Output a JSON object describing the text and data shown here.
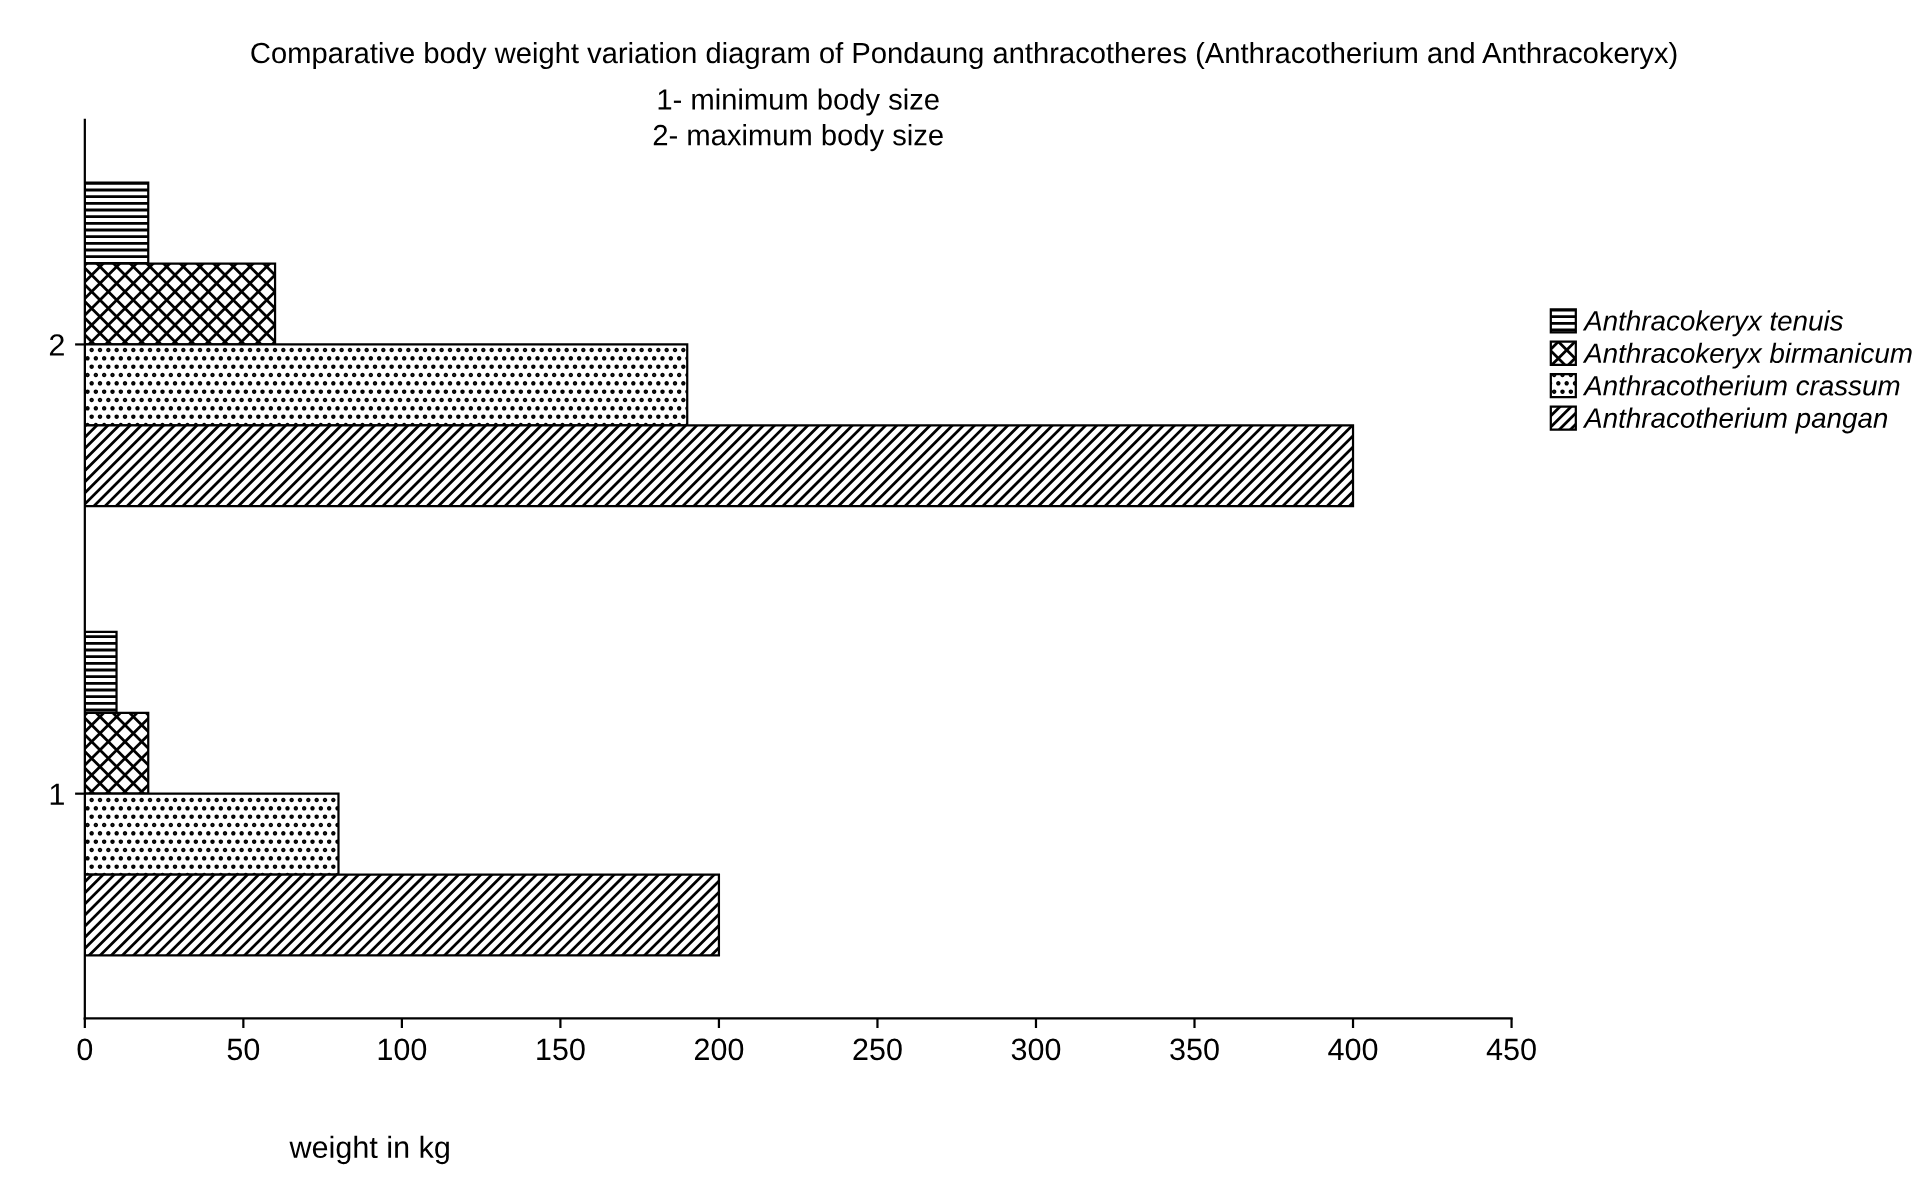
{
  "chart_data": {
    "type": "bar",
    "orientation": "horizontal",
    "title": "Comparative body weight variation diagram of Pondaung anthracotheres (Anthracotherium and Anthracokeryx)",
    "subtitle": "1- minimum body size\n2- maximum body size",
    "xlabel": "weight in kg",
    "categories": [
      "2",
      "1"
    ],
    "series": [
      {
        "name": "Anthracokeryx tenuis",
        "color": "#000000",
        "values": [
          20,
          10
        ]
      },
      {
        "name": "Anthracokeryx birmanicum",
        "color": "#000000",
        "values": [
          60,
          20
        ]
      },
      {
        "name": "Anthracotherium crassum",
        "color": "#000000",
        "values": [
          190,
          80
        ]
      },
      {
        "name": "Anthracotherium pangan",
        "color": "#000000",
        "values": [
          400,
          200
        ]
      }
    ],
    "xlim": [
      0,
      450
    ],
    "xticks": [
      0,
      50,
      100,
      150,
      200,
      250,
      300,
      350,
      400,
      450
    ],
    "grid": false,
    "legend": "right"
  }
}
